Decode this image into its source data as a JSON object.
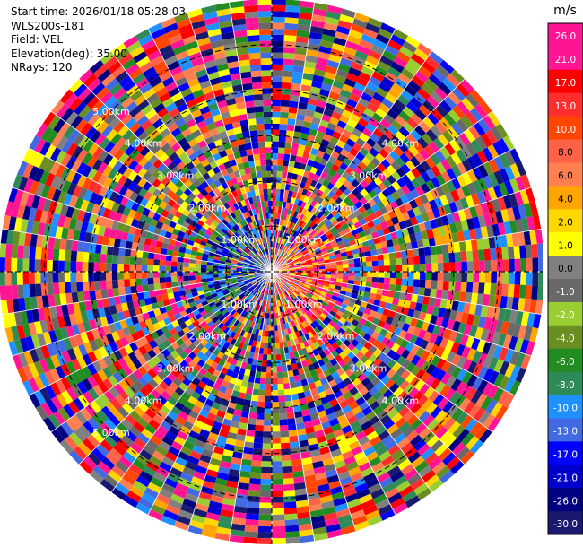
{
  "header": {
    "start_time": "Start time: 2026/01/18 05:28:03",
    "instrument": "WLS200s-181",
    "field": "Field: VEL",
    "elevation": "Elevation(deg): 35.00",
    "nrays": "NRays: 120"
  },
  "chart_data": {
    "type": "heatmap",
    "projection": "polar",
    "field": "VEL",
    "units": "m/s",
    "nrays": 120,
    "elevation_deg": 35.0,
    "range_rings": [
      {
        "label": "1.00km",
        "diag_labels": [
          "1.00km",
          "1.00km",
          "1.00km",
          "1.00km"
        ]
      },
      {
        "label": "2.00km",
        "diag_labels": [
          "2.00km",
          "2.00km",
          "2.00km",
          "2.00km"
        ]
      },
      {
        "label": "3.00km",
        "diag_labels": [
          "3.00km",
          "3.00km",
          "3.00km",
          "3.00km"
        ]
      },
      {
        "label": "4.00km",
        "diag_labels": [
          "4.00km",
          "4.00km",
          "4.00km",
          "4.00km"
        ]
      },
      {
        "label": "5.00km",
        "diag_labels": [
          "5.00km",
          "5.00km"
        ]
      }
    ],
    "colorbar": {
      "label": "m/s",
      "ticks": [
        "26.0",
        "21.0",
        "17.0",
        "13.0",
        "10.0",
        "8.0",
        "6.0",
        "4.0",
        "2.0",
        "1.0",
        "0.0",
        "-1.0",
        "-2.0",
        "-4.0",
        "-6.0",
        "-8.0",
        "-10.0",
        "-13.0",
        "-17.0",
        "-21.0",
        "-26.0",
        "-30.0"
      ],
      "colors": [
        "#ff1493",
        "#ff1493",
        "#ff0000",
        "#ff2e2e",
        "#ff4500",
        "#ff6347",
        "#ff7f50",
        "#ffa500",
        "#ffd700",
        "#ffff00",
        "#808080",
        "#696969",
        "#9acd32",
        "#6b8e23",
        "#228b22",
        "#2e8b57",
        "#1e90ff",
        "#4169e1",
        "#0000ff",
        "#0000cd",
        "#000080",
        "#191970"
      ]
    }
  }
}
